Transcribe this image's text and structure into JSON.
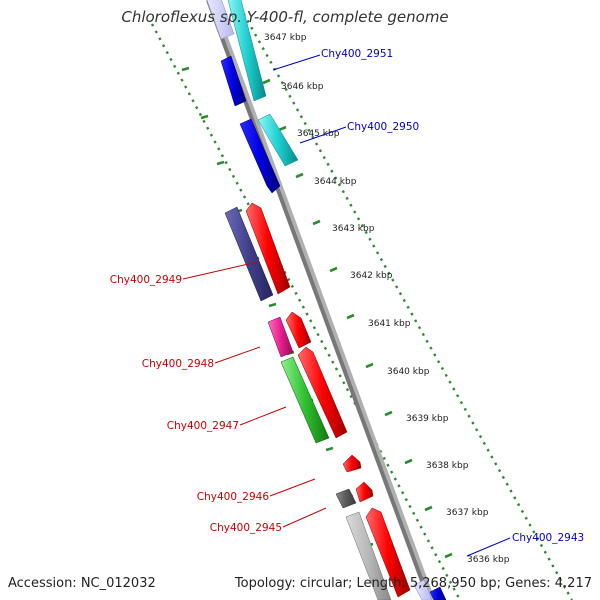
{
  "header": {
    "title": "Chloroflexus sp. Y-400-fl, complete genome"
  },
  "footer": {
    "accession": "Accession: NC_012032",
    "topology": "Topology: circular; Length: 5,268,950 bp; Genes: 4,217"
  },
  "ticks": [
    "3647 kbp",
    "3646 kbp",
    "3645 kbp",
    "3644 kbp",
    "3643 kbp",
    "3642 kbp",
    "3641 kbp",
    "3640 kbp",
    "3639 kbp",
    "3638 kbp",
    "3637 kbp",
    "3636 kbp"
  ],
  "labels": [
    {
      "text": "Chy400_2951",
      "color": "#0000cc"
    },
    {
      "text": "Chy400_2950",
      "color": "#0000cc"
    },
    {
      "text": "Chy400_2949",
      "color": "#cc0000"
    },
    {
      "text": "Chy400_2948",
      "color": "#cc0000"
    },
    {
      "text": "Chy400_2947",
      "color": "#cc0000"
    },
    {
      "text": "Chy400_2946",
      "color": "#cc0000"
    },
    {
      "text": "Chy400_2945",
      "color": "#cc0000"
    },
    {
      "text": "Chy400_2943",
      "color": "#0000cc"
    }
  ]
}
